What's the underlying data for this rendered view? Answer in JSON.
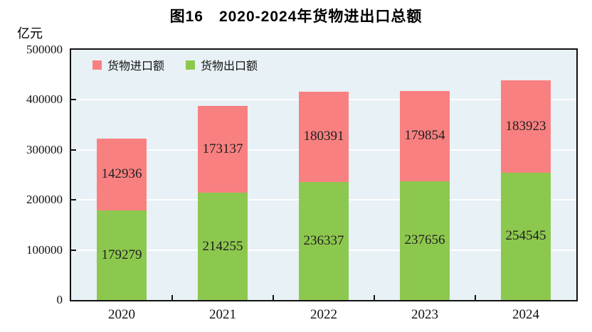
{
  "title": "图16　2020-2024年货物进出口总额",
  "y_axis_unit": "亿元",
  "legend": [
    {
      "label": "货物进口额",
      "color": "#f98080"
    },
    {
      "label": "货物出口额",
      "color": "#8dc84e"
    }
  ],
  "colors": {
    "import_bar": "#f98080",
    "export_bar": "#8dc84e",
    "plot_background": "#e8f1f6",
    "gridline": "#ffffff",
    "axis": "#111111",
    "text": "#1f1f1f"
  },
  "chart_data": {
    "type": "bar",
    "stacked": true,
    "title": "图16　2020-2024年货物进出口总额",
    "ylabel": "亿元",
    "categories": [
      "2020",
      "2021",
      "2022",
      "2023",
      "2024"
    ],
    "series": [
      {
        "name": "货物出口额",
        "color": "#8dc84e",
        "values": [
          179279,
          214255,
          236337,
          237656,
          254545
        ]
      },
      {
        "name": "货物进口额",
        "color": "#f98080",
        "values": [
          142936,
          173137,
          180391,
          179854,
          183923
        ]
      }
    ],
    "totals": [
      322215,
      387392,
      416728,
      417510,
      438468
    ],
    "ylim": [
      0,
      500000
    ],
    "yticks": [
      0,
      100000,
      200000,
      300000,
      400000,
      500000
    ],
    "grid": "horizontal",
    "legend_position": "top-left-inside",
    "data_labels": "centered-in-segment"
  }
}
